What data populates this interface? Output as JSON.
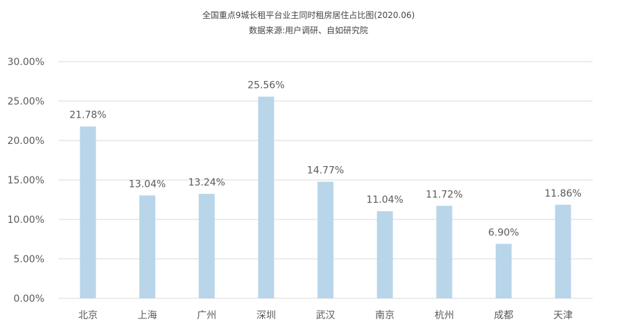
{
  "chart_data": {
    "type": "bar",
    "title": "全国重点9城长租平台业主同时租房居住占比图(2020.06)",
    "subtitle": "数据来源:用户调研、自如研究院",
    "categories": [
      "北京",
      "上海",
      "广州",
      "深圳",
      "武汉",
      "南京",
      "杭州",
      "成都",
      "天津"
    ],
    "values": [
      21.78,
      13.04,
      13.24,
      25.56,
      14.77,
      11.04,
      11.72,
      6.9,
      11.86
    ],
    "data_labels": [
      "21.78%",
      "13.04%",
      "13.24%",
      "25.56%",
      "14.77%",
      "11.04%",
      "11.72%",
      "6.90%",
      "11.86%"
    ],
    "yticks": [
      "0.00%",
      "5.00%",
      "10.00%",
      "15.00%",
      "20.00%",
      "25.00%",
      "30.00%"
    ],
    "ylim": [
      0,
      30
    ],
    "grid": true,
    "bar_color": "#b8d5ea",
    "grid_color": "#d9d9d9"
  }
}
